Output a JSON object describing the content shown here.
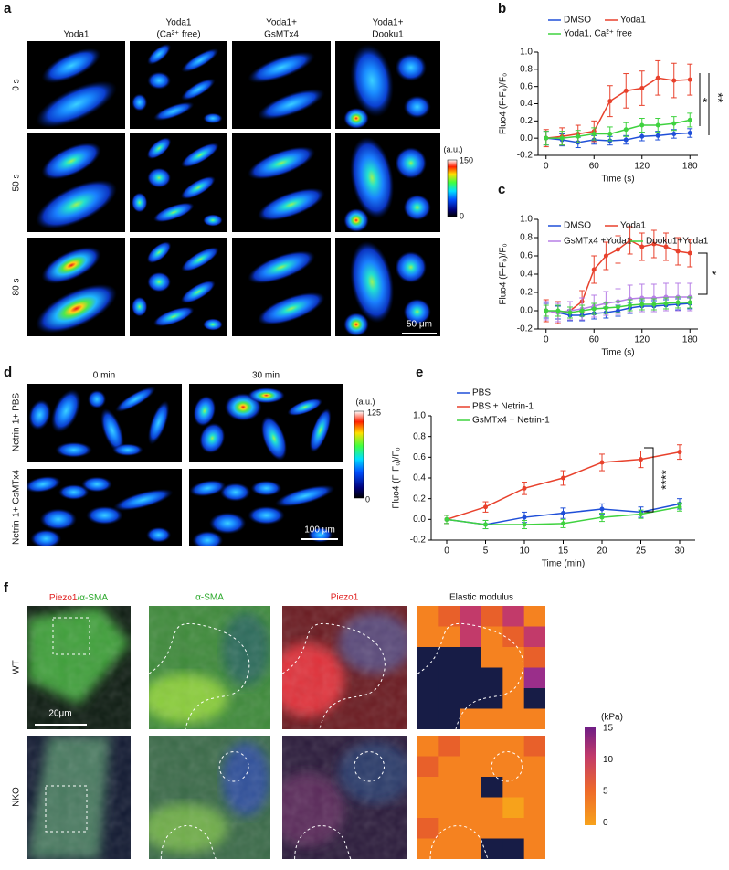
{
  "panel_a": {
    "label": "a",
    "columns": [
      [
        "Yoda1"
      ],
      [
        "Yoda1",
        "(Ca²⁺ free)"
      ],
      [
        "Yoda1+",
        "GsMTx4"
      ],
      [
        "Yoda1+",
        "Dooku1"
      ]
    ],
    "rows": [
      "0 s",
      "50 s",
      "80 s"
    ],
    "colorbar": {
      "unit": "(a.u.)",
      "max": 150,
      "min": 0
    },
    "scale_bar": "50 μm"
  },
  "panel_d": {
    "label": "d",
    "columns": [
      "0 min",
      "30 min"
    ],
    "rows": [
      "Netrin-1+ PBS",
      "Netrin-1+ GsMTx4"
    ],
    "colorbar": {
      "unit": "(a.u.)",
      "max": 125,
      "min": 0
    },
    "scale_bar": "100 μm"
  },
  "panel_f": {
    "label": "f",
    "columns": [
      [
        "Piezo1",
        "/α-SMA"
      ],
      "α-SMA",
      "Piezo1",
      "Elastic modulus"
    ],
    "rows": [
      "WT",
      "NKO"
    ],
    "colorbar": {
      "unit": "(kPa)",
      "ticks": [
        15,
        10,
        5,
        0
      ]
    },
    "scale_bar": "20μm"
  },
  "chart_data": [
    {
      "type": "line",
      "panel": "b",
      "x": [
        0,
        20,
        40,
        60,
        80,
        100,
        120,
        140,
        160,
        180
      ],
      "series": [
        {
          "name": "DMSO",
          "color": "#1f4fd8",
          "values": [
            0,
            -0.02,
            -0.05,
            -0.02,
            -0.03,
            -0.02,
            0.02,
            0.03,
            0.05,
            0.06
          ],
          "errors": [
            0.08,
            0.07,
            0.06,
            0.05,
            0.05,
            0.05,
            0.05,
            0.05,
            0.05,
            0.05
          ]
        },
        {
          "name": "Yoda1",
          "color": "#e8412c",
          "values": [
            0,
            0.02,
            0.05,
            0.08,
            0.43,
            0.55,
            0.58,
            0.7,
            0.67,
            0.68
          ],
          "errors": [
            0.1,
            0.1,
            0.1,
            0.12,
            0.18,
            0.2,
            0.2,
            0.2,
            0.2,
            0.18
          ]
        },
        {
          "name": "Yoda1, Ca²⁺ free",
          "color": "#3fd23f",
          "values": [
            0,
            0,
            0.02,
            0.05,
            0.05,
            0.1,
            0.15,
            0.15,
            0.17,
            0.21
          ],
          "errors": [
            0.08,
            0.08,
            0.07,
            0.07,
            0.08,
            0.08,
            0.08,
            0.08,
            0.08,
            0.08
          ]
        }
      ],
      "xlim": [
        -10,
        190
      ],
      "xticks": [
        0,
        60,
        120,
        180
      ],
      "ylim": [
        -0.2,
        1.0
      ],
      "yticks": [
        -0.2,
        {
          "value": 0,
          "label": "0.0"
        },
        0.2,
        0.4,
        0.6,
        0.8,
        {
          "value": 1,
          "label": "1.0"
        }
      ],
      "xlabel": "Time (s)",
      "ylabel": "Fluo4 (F-F₀)/F₀",
      "annotations": [
        "*",
        "**"
      ]
    },
    {
      "type": "line",
      "panel": "c",
      "x": [
        0,
        15,
        30,
        45,
        60,
        75,
        90,
        105,
        120,
        135,
        150,
        165,
        180
      ],
      "series": [
        {
          "name": "DMSO",
          "color": "#1f4fd8",
          "values": [
            0,
            -0.02,
            -0.05,
            -0.05,
            -0.03,
            -0.02,
            0,
            0.03,
            0.05,
            0.05,
            0.06,
            0.07,
            0.08
          ],
          "errors": [
            0.08,
            0.07,
            0.06,
            0.06,
            0.06,
            0.06,
            0.06,
            0.06,
            0.06,
            0.06,
            0.06,
            0.06,
            0.06
          ]
        },
        {
          "name": "Yoda1",
          "color": "#e8412c",
          "values": [
            0,
            -0.02,
            0,
            0.1,
            0.45,
            0.6,
            0.67,
            0.77,
            0.7,
            0.73,
            0.7,
            0.65,
            0.63
          ],
          "errors": [
            0.12,
            0.12,
            0.1,
            0.12,
            0.15,
            0.15,
            0.15,
            0.15,
            0.15,
            0.15,
            0.15,
            0.15,
            0.15
          ]
        },
        {
          "name": "GsMTx4 +Yoda1",
          "color": "#b77fe6",
          "values": [
            0,
            -0.02,
            0,
            0.02,
            0.05,
            0.08,
            0.1,
            0.13,
            0.14,
            0.14,
            0.15,
            0.15,
            0.15
          ],
          "errors": [
            0.1,
            0.1,
            0.1,
            0.12,
            0.12,
            0.13,
            0.14,
            0.15,
            0.15,
            0.15,
            0.15,
            0.15,
            0.15
          ]
        },
        {
          "name": "Dooku1+Yoda1",
          "color": "#3fd23f",
          "values": [
            0,
            0,
            -0.02,
            0,
            0.02,
            0.03,
            0.04,
            0.06,
            0.07,
            0.07,
            0.08,
            0.09,
            0.09
          ],
          "errors": [
            0.06,
            0.06,
            0.06,
            0.06,
            0.06,
            0.06,
            0.06,
            0.06,
            0.06,
            0.06,
            0.06,
            0.06,
            0.06
          ]
        }
      ],
      "xlim": [
        -10,
        190
      ],
      "xticks": [
        0,
        60,
        120,
        180
      ],
      "ylim": [
        -0.2,
        1.0
      ],
      "yticks": [
        -0.2,
        {
          "value": 0,
          "label": "0.0"
        },
        0.2,
        0.4,
        0.6,
        0.8,
        {
          "value": 1,
          "label": "1.0"
        }
      ],
      "xlabel": "Time (s)",
      "ylabel": "Fluo4 (F-F₀)/F₀",
      "annotations": [
        "*"
      ]
    },
    {
      "type": "line",
      "panel": "e",
      "x": [
        0,
        5,
        10,
        15,
        20,
        25,
        30
      ],
      "series": [
        {
          "name": "PBS",
          "color": "#1f4fd8",
          "values": [
            0,
            -0.05,
            0.02,
            0.06,
            0.1,
            0.07,
            0.15
          ],
          "errors": [
            0.04,
            0.04,
            0.05,
            0.05,
            0.05,
            0.05,
            0.05
          ]
        },
        {
          "name": "PBS + Netrin-1",
          "color": "#e8412c",
          "values": [
            0,
            0.12,
            0.3,
            0.4,
            0.55,
            0.58,
            0.65
          ],
          "errors": [
            0.04,
            0.05,
            0.06,
            0.07,
            0.08,
            0.08,
            0.07
          ]
        },
        {
          "name": "GsMTx4 + Netrin-1",
          "color": "#3fd23f",
          "values": [
            0,
            -0.05,
            -0.05,
            -0.04,
            0.02,
            0.05,
            0.12
          ],
          "errors": [
            0.04,
            0.04,
            0.04,
            0.04,
            0.04,
            0.04,
            0.04
          ]
        }
      ],
      "xlim": [
        -2,
        32
      ],
      "xticks": [
        0,
        5,
        10,
        15,
        20,
        25,
        30
      ],
      "ylim": [
        -0.2,
        1.0
      ],
      "yticks": [
        -0.2,
        {
          "value": 0,
          "label": "0.0"
        },
        0.2,
        0.4,
        0.6,
        0.8,
        {
          "value": 1,
          "label": "1.0"
        }
      ],
      "xlabel": "Time (min)",
      "ylabel": "Fluo4 (F-F₀)/F₀",
      "annotations": [
        "****"
      ]
    }
  ]
}
